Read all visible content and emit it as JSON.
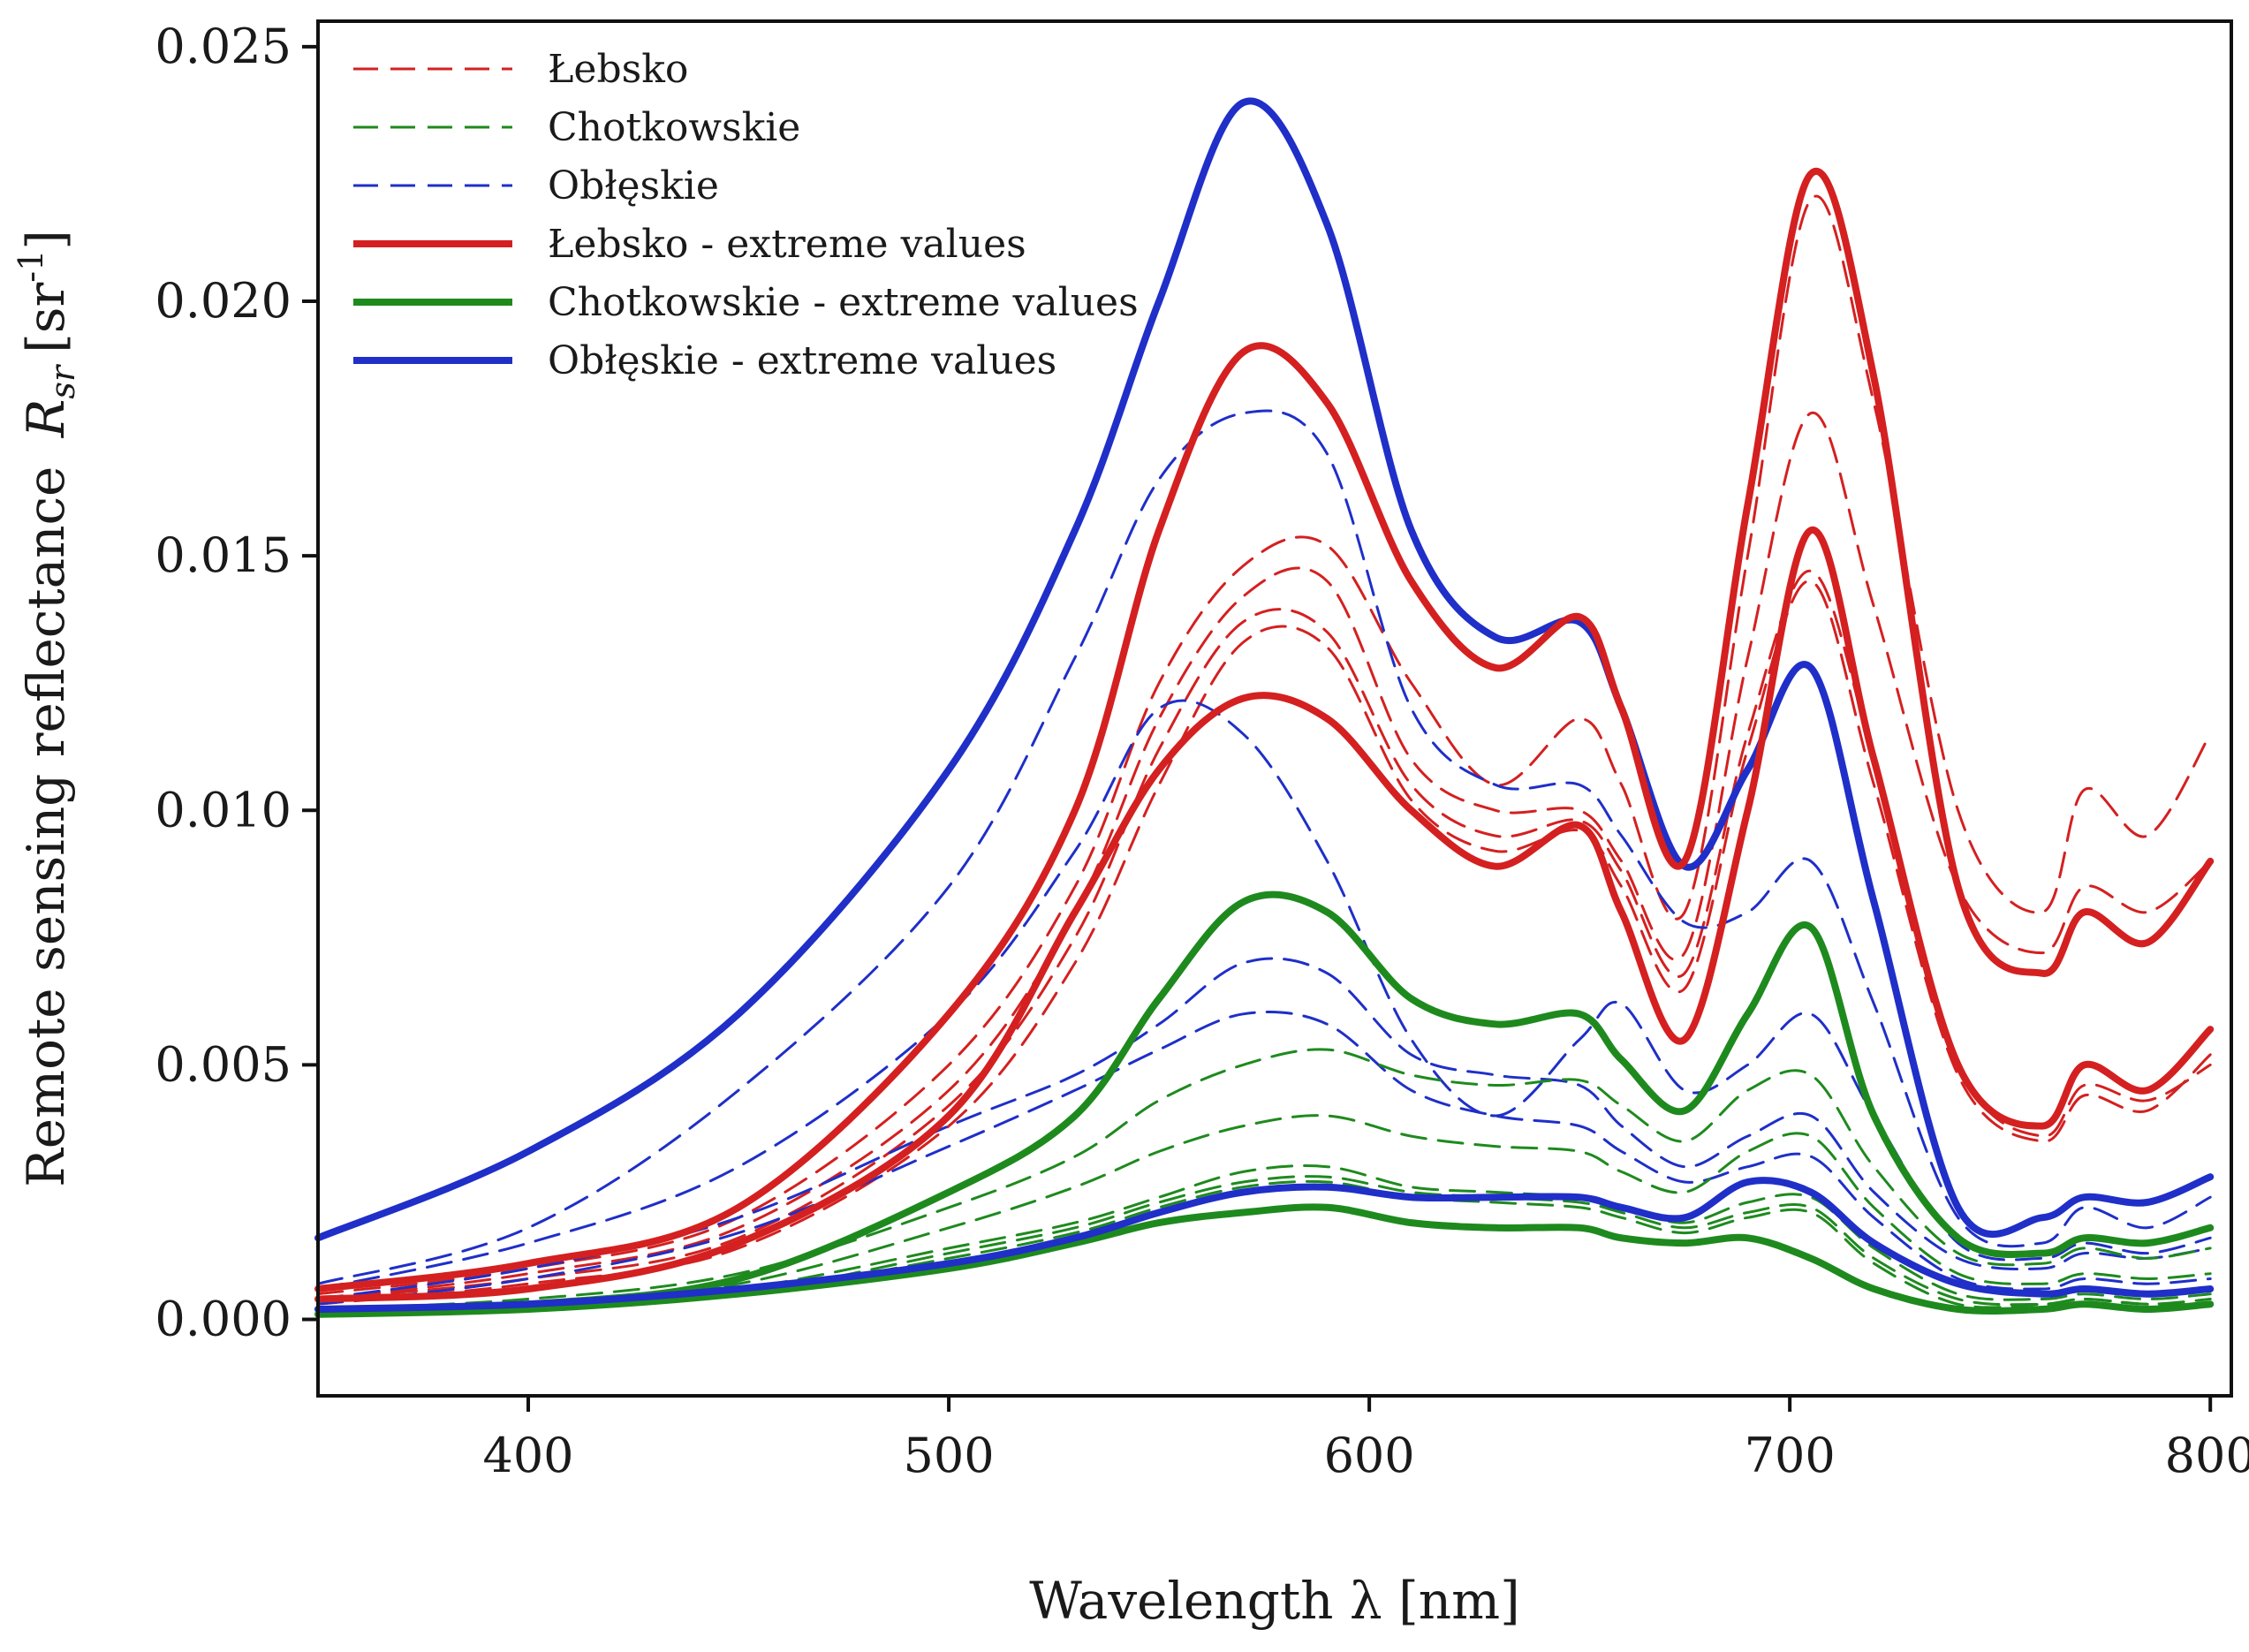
{
  "chart_data": {
    "type": "line",
    "title": "",
    "xlabel": "Wavelength λ [nm]",
    "ylabel_main": "Remote sensing reflectance",
    "ylabel_symbol": "R",
    "ylabel_subscript": "sr",
    "ylabel_unit_open": "[sr",
    "ylabel_unit_sup": "-1",
    "ylabel_unit_close": "]",
    "xlim": [
      350,
      805
    ],
    "ylim": [
      -0.0015,
      0.0255
    ],
    "x_ticks": [
      400,
      500,
      600,
      700,
      800
    ],
    "x_tick_labels": [
      "400",
      "500",
      "600",
      "700",
      "800"
    ],
    "y_ticks": [
      0.0,
      0.005,
      0.01,
      0.015,
      0.02,
      0.025
    ],
    "y_tick_labels": [
      "0.000",
      "0.005",
      "0.010",
      "0.015",
      "0.020",
      "0.025"
    ],
    "grid": false,
    "legend_position": "top-left",
    "colors": {
      "Łebsko": "#d42020",
      "Chotkowskie": "#1e8a1e",
      "Obłęskie": "#1f2fc8"
    },
    "legend": [
      {
        "label": "Łebsko",
        "lake": "Łebsko",
        "style": "dashed"
      },
      {
        "label": "Chotkowskie",
        "lake": "Chotkowskie",
        "style": "dashed"
      },
      {
        "label": "Obłęskie",
        "lake": "Obłęskie",
        "style": "dashed"
      },
      {
        "label": "Łebsko - extreme values",
        "lake": "Łebsko",
        "style": "solid"
      },
      {
        "label": "Chotkowskie - extreme values",
        "lake": "Chotkowskie",
        "style": "solid"
      },
      {
        "label": "Obłęskie - extreme values",
        "lake": "Obłęskie",
        "style": "solid"
      }
    ],
    "x": [
      350,
      400,
      450,
      500,
      530,
      550,
      570,
      590,
      610,
      630,
      650,
      660,
      675,
      690,
      705,
      720,
      740,
      760,
      770,
      785,
      800
    ],
    "series": [
      {
        "name": "Obłęskie - extreme values (max)",
        "lake": "Obłęskie",
        "style": "solid",
        "values": [
          0.0016,
          0.0033,
          0.006,
          0.0108,
          0.0155,
          0.02,
          0.0239,
          0.0215,
          0.0155,
          0.0134,
          0.0137,
          0.012,
          0.0089,
          0.0108,
          0.0128,
          0.0082,
          0.0022,
          0.002,
          0.0024,
          0.0023,
          0.0028
        ]
      },
      {
        "name": "Łebsko - extreme values (max)",
        "lake": "Łebsko",
        "style": "solid",
        "values": [
          0.0006,
          0.0011,
          0.0022,
          0.006,
          0.01,
          0.0155,
          0.019,
          0.018,
          0.0145,
          0.0128,
          0.0138,
          0.012,
          0.009,
          0.016,
          0.0225,
          0.0185,
          0.0085,
          0.0068,
          0.008,
          0.0074,
          0.009
        ]
      },
      {
        "name": "Łebsko - extreme values (min)",
        "lake": "Łebsko",
        "style": "solid",
        "values": [
          0.0004,
          0.0006,
          0.0015,
          0.004,
          0.008,
          0.0108,
          0.0122,
          0.0118,
          0.01,
          0.0089,
          0.0097,
          0.008,
          0.0055,
          0.01,
          0.0155,
          0.011,
          0.005,
          0.0038,
          0.005,
          0.0045,
          0.0057
        ]
      },
      {
        "name": "Chotkowskie - extreme values (max)",
        "lake": "Chotkowskie",
        "style": "solid",
        "values": [
          0.0002,
          0.0003,
          0.0008,
          0.0025,
          0.004,
          0.0063,
          0.0082,
          0.008,
          0.0063,
          0.0058,
          0.006,
          0.0051,
          0.0041,
          0.006,
          0.0077,
          0.004,
          0.0016,
          0.0013,
          0.0016,
          0.0015,
          0.0018
        ]
      },
      {
        "name": "Chotkowskie - extreme values (min)",
        "lake": "Chotkowskie",
        "style": "solid",
        "values": [
          0.0001,
          0.0002,
          0.0005,
          0.001,
          0.0015,
          0.0019,
          0.0021,
          0.0022,
          0.0019,
          0.0018,
          0.0018,
          0.0016,
          0.0015,
          0.0016,
          0.0012,
          0.0006,
          0.0002,
          0.0002,
          0.0003,
          0.0002,
          0.0003
        ]
      },
      {
        "name": "Obłęskie - extreme values (min)",
        "lake": "Obłęskie",
        "style": "solid",
        "values": [
          0.0002,
          0.0003,
          0.0006,
          0.0011,
          0.0016,
          0.0021,
          0.0025,
          0.0026,
          0.0024,
          0.0024,
          0.0024,
          0.0022,
          0.002,
          0.0027,
          0.0025,
          0.0015,
          0.0007,
          0.0005,
          0.0006,
          0.0005,
          0.0006
        ]
      },
      {
        "name": "Łebsko 1",
        "lake": "Łebsko",
        "style": "dashed",
        "values": [
          0.0005,
          0.001,
          0.002,
          0.005,
          0.0085,
          0.0125,
          0.0148,
          0.0152,
          0.0125,
          0.0105,
          0.0118,
          0.0105,
          0.008,
          0.015,
          0.022,
          0.018,
          0.01,
          0.008,
          0.0104,
          0.0095,
          0.0115
        ]
      },
      {
        "name": "Łebsko 2",
        "lake": "Łebsko",
        "style": "dashed",
        "values": [
          0.0004,
          0.0009,
          0.0018,
          0.0045,
          0.008,
          0.0118,
          0.0142,
          0.0145,
          0.011,
          0.01,
          0.01,
          0.009,
          0.0072,
          0.013,
          0.0178,
          0.014,
          0.0085,
          0.0072,
          0.0085,
          0.008,
          0.009
        ]
      },
      {
        "name": "Łebsko 3",
        "lake": "Łebsko",
        "style": "dashed",
        "values": [
          0.0004,
          0.0008,
          0.0016,
          0.0042,
          0.0075,
          0.0112,
          0.0137,
          0.0135,
          0.0105,
          0.0095,
          0.0098,
          0.0088,
          0.0068,
          0.0115,
          0.0147,
          0.011,
          0.005,
          0.0036,
          0.0046,
          0.0043,
          0.005
        ]
      },
      {
        "name": "Łebsko 4",
        "lake": "Łebsko",
        "style": "dashed",
        "values": [
          0.0003,
          0.0007,
          0.0014,
          0.0038,
          0.007,
          0.0105,
          0.0133,
          0.0132,
          0.0102,
          0.0092,
          0.0096,
          0.0085,
          0.0065,
          0.0112,
          0.0145,
          0.0105,
          0.0048,
          0.0035,
          0.0044,
          0.0041,
          0.0052
        ]
      },
      {
        "name": "Obłęskie 1",
        "lake": "Obłęskie",
        "style": "dashed",
        "values": [
          0.0007,
          0.0018,
          0.0045,
          0.0085,
          0.013,
          0.0165,
          0.0178,
          0.017,
          0.012,
          0.0105,
          0.0105,
          0.0095,
          0.0078,
          0.008,
          0.009,
          0.0062,
          0.002,
          0.0015,
          0.0022,
          0.0018,
          0.0024
        ]
      },
      {
        "name": "Obłęskie 2",
        "lake": "Obłęskie",
        "style": "dashed",
        "values": [
          0.0006,
          0.0015,
          0.003,
          0.006,
          0.0092,
          0.012,
          0.0115,
          0.009,
          0.0055,
          0.004,
          0.0055,
          0.0062,
          0.0045,
          0.005,
          0.006,
          0.004,
          0.0015,
          0.0012,
          0.0015,
          0.0013,
          0.0016
        ]
      },
      {
        "name": "Obłęskie 3",
        "lake": "Obłęskie",
        "style": "dashed",
        "values": [
          0.0004,
          0.001,
          0.002,
          0.0038,
          0.0048,
          0.0058,
          0.007,
          0.0068,
          0.0052,
          0.0048,
          0.0046,
          0.0038,
          0.003,
          0.0036,
          0.004,
          0.0025,
          0.0012,
          0.001,
          0.0013,
          0.0012,
          0.0014
        ]
      },
      {
        "name": "Obłęskie 4",
        "lake": "Obłęskie",
        "style": "dashed",
        "values": [
          0.0003,
          0.0008,
          0.0017,
          0.0034,
          0.0045,
          0.0053,
          0.006,
          0.0058,
          0.0045,
          0.004,
          0.0038,
          0.0033,
          0.0027,
          0.003,
          0.0032,
          0.002,
          0.0008,
          0.0006,
          0.0008,
          0.0007,
          0.0008
        ]
      },
      {
        "name": "Chotkowskie 1",
        "lake": "Chotkowskie",
        "style": "dashed",
        "values": [
          0.0002,
          0.0004,
          0.0009,
          0.0022,
          0.0032,
          0.0043,
          0.005,
          0.0053,
          0.0048,
          0.0046,
          0.0047,
          0.0042,
          0.0035,
          0.0045,
          0.0048,
          0.003,
          0.0013,
          0.0011,
          0.0014,
          0.0012,
          0.0014
        ]
      },
      {
        "name": "Chotkowskie 2",
        "lake": "Chotkowskie",
        "style": "dashed",
        "values": [
          0.0002,
          0.0003,
          0.0007,
          0.0018,
          0.0026,
          0.0033,
          0.0038,
          0.004,
          0.0036,
          0.0034,
          0.0033,
          0.0029,
          0.0025,
          0.0033,
          0.0036,
          0.0022,
          0.0009,
          0.0007,
          0.0009,
          0.0008,
          0.0009
        ]
      },
      {
        "name": "Chotkowskie 3",
        "lake": "Chotkowskie",
        "style": "dashed",
        "values": [
          0.0001,
          0.0003,
          0.0006,
          0.0014,
          0.0019,
          0.0024,
          0.0029,
          0.003,
          0.0026,
          0.0025,
          0.0024,
          0.0022,
          0.0019,
          0.0023,
          0.0024,
          0.0014,
          0.0005,
          0.0004,
          0.0005,
          0.0004,
          0.0005
        ]
      },
      {
        "name": "Chotkowskie 4",
        "lake": "Chotkowskie",
        "style": "dashed",
        "values": [
          0.0001,
          0.0002,
          0.0005,
          0.0013,
          0.0018,
          0.0023,
          0.0027,
          0.0028,
          0.0025,
          0.0024,
          0.0023,
          0.0021,
          0.0018,
          0.0021,
          0.0022,
          0.0012,
          0.0004,
          0.0003,
          0.0004,
          0.0003,
          0.0004
        ]
      },
      {
        "name": "Chotkowskie 5",
        "lake": "Chotkowskie",
        "style": "dashed",
        "values": [
          0.0001,
          0.0002,
          0.0005,
          0.0012,
          0.0017,
          0.0022,
          0.0026,
          0.0027,
          0.0024,
          0.0023,
          0.0022,
          0.002,
          0.0017,
          0.002,
          0.0021,
          0.0011,
          0.0003,
          0.0003,
          0.0004,
          0.0003,
          0.0003
        ]
      }
    ]
  }
}
